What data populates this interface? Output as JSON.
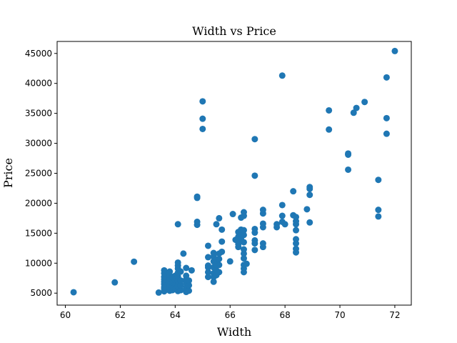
{
  "chart_data": {
    "type": "scatter",
    "title": "Width vs Price",
    "xlabel": "Width",
    "ylabel": "Price",
    "xlim": [
      59.7,
      72.6
    ],
    "ylim": [
      3000,
      47000
    ],
    "xticks": [
      60,
      62,
      64,
      66,
      68,
      70,
      72
    ],
    "yticks": [
      5000,
      10000,
      15000,
      20000,
      25000,
      30000,
      35000,
      40000,
      45000
    ],
    "grid": false,
    "marker_color": "#1f77b4",
    "series": [
      {
        "points": [
          [
            60.3,
            5150
          ],
          [
            61.8,
            6800
          ],
          [
            62.5,
            10250
          ],
          [
            63.4,
            5100
          ],
          [
            63.6,
            5300
          ],
          [
            63.6,
            5700
          ],
          [
            63.6,
            6000
          ],
          [
            63.6,
            6500
          ],
          [
            63.6,
            6900
          ],
          [
            63.6,
            7300
          ],
          [
            63.6,
            7700
          ],
          [
            63.6,
            8300
          ],
          [
            63.6,
            8800
          ],
          [
            63.8,
            5400
          ],
          [
            63.8,
            5900
          ],
          [
            63.8,
            6400
          ],
          [
            63.8,
            7000
          ],
          [
            63.8,
            7500
          ],
          [
            63.8,
            8000
          ],
          [
            63.8,
            8600
          ],
          [
            63.9,
            5500
          ],
          [
            63.9,
            6200
          ],
          [
            63.9,
            6800
          ],
          [
            63.9,
            7600
          ],
          [
            64.0,
            5700
          ],
          [
            64.0,
            6600
          ],
          [
            64.0,
            7200
          ],
          [
            64.0,
            7900
          ],
          [
            64.1,
            5350
          ],
          [
            64.1,
            6100
          ],
          [
            64.1,
            7000
          ],
          [
            64.1,
            7800
          ],
          [
            64.1,
            8400
          ],
          [
            64.1,
            9100
          ],
          [
            64.1,
            9600
          ],
          [
            64.1,
            10100
          ],
          [
            64.1,
            16500
          ],
          [
            64.2,
            5500
          ],
          [
            64.2,
            6300
          ],
          [
            64.2,
            7100
          ],
          [
            64.2,
            8600
          ],
          [
            64.3,
            11600
          ],
          [
            64.4,
            5200
          ],
          [
            64.4,
            5900
          ],
          [
            64.4,
            6700
          ],
          [
            64.4,
            7300
          ],
          [
            64.4,
            7900
          ],
          [
            64.4,
            9200
          ],
          [
            64.5,
            5400
          ],
          [
            64.5,
            6300
          ],
          [
            64.5,
            7100
          ],
          [
            64.6,
            8800
          ],
          [
            64.8,
            16400
          ],
          [
            64.8,
            16900
          ],
          [
            64.8,
            20900
          ],
          [
            64.8,
            21100
          ],
          [
            65.0,
            32400
          ],
          [
            65.0,
            34100
          ],
          [
            65.0,
            37000
          ],
          [
            65.2,
            7700
          ],
          [
            65.2,
            8500
          ],
          [
            65.2,
            9300
          ],
          [
            65.2,
            9600
          ],
          [
            65.2,
            11000
          ],
          [
            65.2,
            12900
          ],
          [
            65.4,
            6900
          ],
          [
            65.4,
            7700
          ],
          [
            65.4,
            8300
          ],
          [
            65.4,
            9300
          ],
          [
            65.4,
            10300
          ],
          [
            65.4,
            11100
          ],
          [
            65.4,
            11700
          ],
          [
            65.5,
            8000
          ],
          [
            65.5,
            8800
          ],
          [
            65.5,
            9700
          ],
          [
            65.5,
            10500
          ],
          [
            65.5,
            16500
          ],
          [
            65.6,
            8500
          ],
          [
            65.6,
            9700
          ],
          [
            65.6,
            10700
          ],
          [
            65.6,
            11600
          ],
          [
            65.6,
            17500
          ],
          [
            65.7,
            11900
          ],
          [
            65.7,
            13600
          ],
          [
            65.7,
            15600
          ],
          [
            66.0,
            10300
          ],
          [
            66.1,
            18200
          ],
          [
            66.2,
            13900
          ],
          [
            66.3,
            12700
          ],
          [
            66.3,
            13200
          ],
          [
            66.3,
            14400
          ],
          [
            66.3,
            15200
          ],
          [
            66.4,
            14000
          ],
          [
            66.4,
            14900
          ],
          [
            66.4,
            15600
          ],
          [
            66.4,
            17600
          ],
          [
            66.5,
            8500
          ],
          [
            66.5,
            9100
          ],
          [
            66.5,
            9700
          ],
          [
            66.5,
            10800
          ],
          [
            66.5,
            11600
          ],
          [
            66.5,
            12300
          ],
          [
            66.5,
            13500
          ],
          [
            66.5,
            14700
          ],
          [
            66.5,
            15500
          ],
          [
            66.5,
            17900
          ],
          [
            66.5,
            18500
          ],
          [
            66.6,
            9900
          ],
          [
            66.9,
            12200
          ],
          [
            66.9,
            13300
          ],
          [
            66.9,
            13800
          ],
          [
            66.9,
            15100
          ],
          [
            66.9,
            15700
          ],
          [
            66.9,
            24600
          ],
          [
            66.9,
            30700
          ],
          [
            67.2,
            12700
          ],
          [
            67.2,
            13300
          ],
          [
            67.2,
            16000
          ],
          [
            67.2,
            16600
          ],
          [
            67.2,
            18300
          ],
          [
            67.2,
            18900
          ],
          [
            67.7,
            16000
          ],
          [
            67.7,
            16500
          ],
          [
            67.9,
            16900
          ],
          [
            67.9,
            17900
          ],
          [
            67.9,
            19700
          ],
          [
            67.9,
            41300
          ],
          [
            68.0,
            16500
          ],
          [
            68.3,
            18000
          ],
          [
            68.3,
            22000
          ],
          [
            68.4,
            11800
          ],
          [
            68.4,
            12400
          ],
          [
            68.4,
            13300
          ],
          [
            68.4,
            14000
          ],
          [
            68.4,
            15500
          ],
          [
            68.4,
            16500
          ],
          [
            68.4,
            17000
          ],
          [
            68.4,
            17700
          ],
          [
            68.8,
            19000
          ],
          [
            68.9,
            16800
          ],
          [
            68.9,
            21400
          ],
          [
            68.9,
            22400
          ],
          [
            68.9,
            22700
          ],
          [
            69.6,
            32300
          ],
          [
            69.6,
            35500
          ],
          [
            70.3,
            25600
          ],
          [
            70.3,
            28100
          ],
          [
            70.3,
            28300
          ],
          [
            70.5,
            35100
          ],
          [
            70.6,
            35900
          ],
          [
            70.9,
            36900
          ],
          [
            71.4,
            17800
          ],
          [
            71.4,
            18900
          ],
          [
            71.4,
            23900
          ],
          [
            71.7,
            31600
          ],
          [
            71.7,
            34200
          ],
          [
            71.7,
            41000
          ],
          [
            72.0,
            45400
          ]
        ]
      }
    ]
  }
}
